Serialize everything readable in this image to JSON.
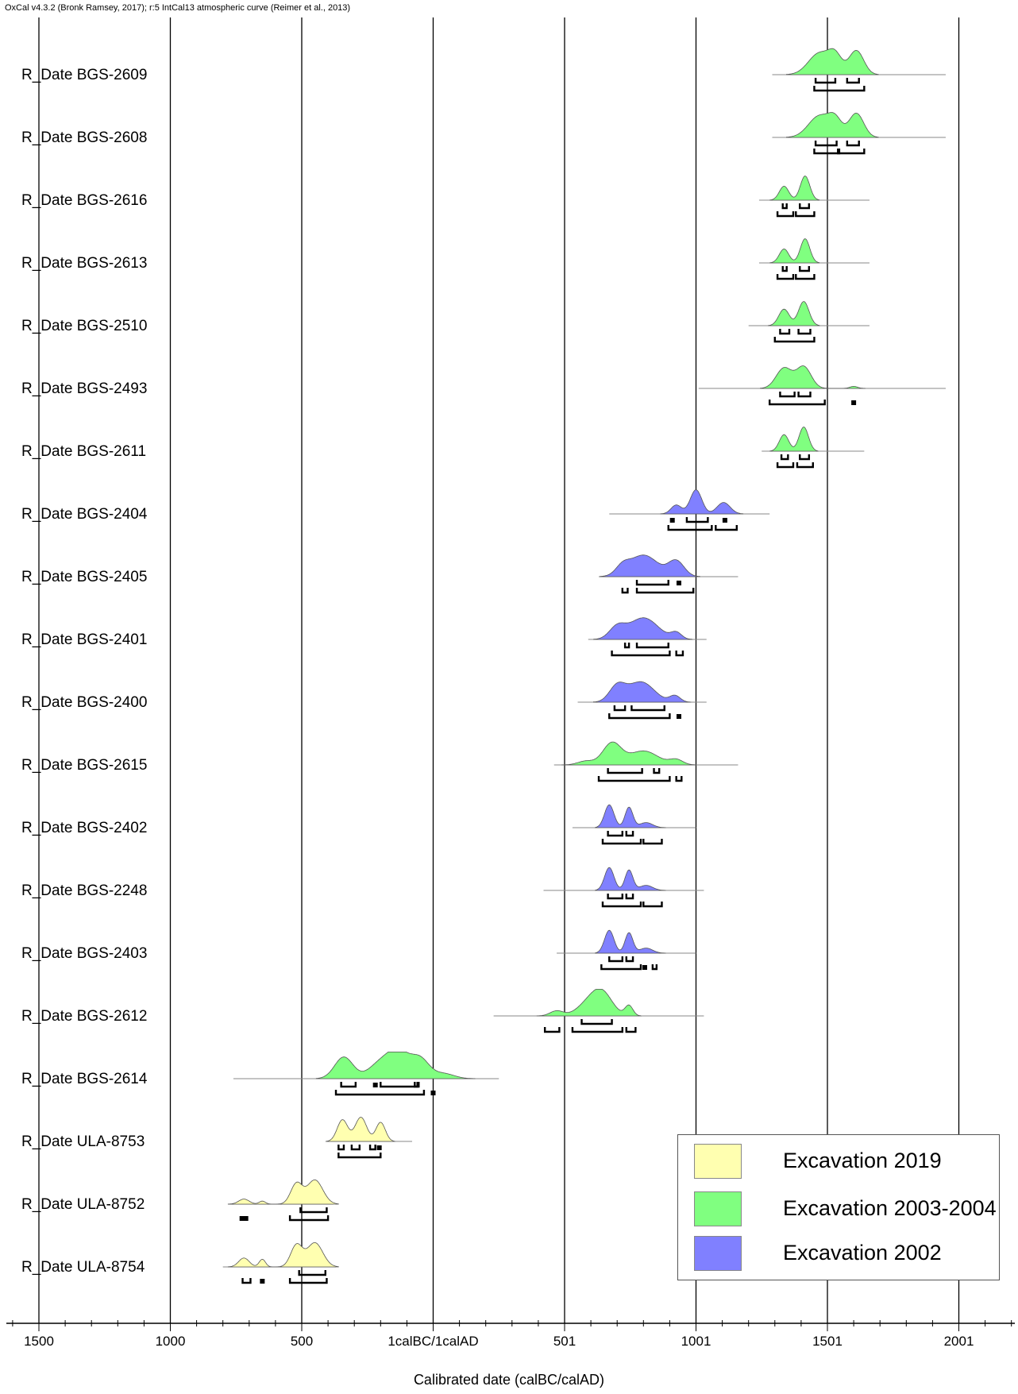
{
  "header": "OxCal v4.3.2 (Bronk Ramsey, 2017); r:5 IntCal13 atmospheric curve (Reimer et al., 2013)",
  "colors": {
    "Excavation 2019": "#ffffb0",
    "Excavation 2003-2004": "#80ff80",
    "Excavation 2002": "#8080ff"
  },
  "chart_data": {
    "type": "area",
    "title": "",
    "xlabel": "Calibrated date (calBC/calAD)",
    "xlim": [
      -1600,
      2260
    ],
    "x_ticks": [
      {
        "value": -1500,
        "label": "1500"
      },
      {
        "value": -1000,
        "label": "1000"
      },
      {
        "value": -500,
        "label": "500"
      },
      {
        "value": 0,
        "label": "1calBC/1calAD"
      },
      {
        "value": 500,
        "label": "501"
      },
      {
        "value": 1000,
        "label": "1001"
      },
      {
        "value": 1500,
        "label": "1501"
      },
      {
        "value": 2000,
        "label": "2001"
      }
    ],
    "grid": true,
    "legend": {
      "placement": "bottom-right",
      "entries": [
        "Excavation 2019",
        "Excavation 2003-2004",
        "Excavation 2002"
      ]
    },
    "series": [
      {
        "name": "R_Date BGS-2609",
        "group": "Excavation 2003-2004",
        "prior": [
          1290,
          1950
        ],
        "peaks": [
          [
            1470,
            42,
            0.85
          ],
          [
            1530,
            25,
            0.65
          ],
          [
            1610,
            28,
            0.95
          ]
        ],
        "sigma1": [
          [
            1455,
            1530
          ],
          [
            1575,
            1620
          ]
        ],
        "sigma2": [
          [
            1450,
            1640
          ]
        ]
      },
      {
        "name": "R_Date BGS-2608",
        "group": "Excavation 2003-2004",
        "prior": [
          1290,
          1950
        ],
        "peaks": [
          [
            1470,
            42,
            0.85
          ],
          [
            1530,
            25,
            0.6
          ],
          [
            1610,
            28,
            0.95
          ]
        ],
        "sigma1": [
          [
            1455,
            1535
          ],
          [
            1575,
            1620
          ]
        ],
        "sigma2": [
          [
            1450,
            1545
          ],
          [
            1540,
            1640
          ]
        ]
      },
      {
        "name": "R_Date BGS-2616",
        "group": "Excavation 2003-2004",
        "prior": [
          1240,
          1660
        ],
        "peaks": [
          [
            1335,
            18,
            0.55
          ],
          [
            1415,
            18,
            0.95
          ]
        ],
        "sigma1": [
          [
            1330,
            1345
          ],
          [
            1395,
            1430
          ]
        ],
        "sigma2": [
          [
            1310,
            1370
          ],
          [
            1380,
            1450
          ]
        ]
      },
      {
        "name": "R_Date BGS-2613",
        "group": "Excavation 2003-2004",
        "prior": [
          1240,
          1660
        ],
        "peaks": [
          [
            1335,
            18,
            0.55
          ],
          [
            1415,
            18,
            0.95
          ]
        ],
        "sigma1": [
          [
            1330,
            1345
          ],
          [
            1395,
            1430
          ]
        ],
        "sigma2": [
          [
            1310,
            1370
          ],
          [
            1380,
            1450
          ]
        ]
      },
      {
        "name": "R_Date BGS-2510",
        "group": "Excavation 2003-2004",
        "prior": [
          1200,
          1660
        ],
        "peaks": [
          [
            1335,
            20,
            0.65
          ],
          [
            1410,
            20,
            0.95
          ]
        ],
        "sigma1": [
          [
            1320,
            1355
          ],
          [
            1390,
            1435
          ]
        ],
        "sigma2": [
          [
            1300,
            1450
          ]
        ]
      },
      {
        "name": "R_Date BGS-2493",
        "group": "Excavation 2003-2004",
        "prior": [
          1010,
          1950
        ],
        "peaks": [
          [
            1335,
            30,
            0.8
          ],
          [
            1410,
            28,
            0.85
          ],
          [
            1600,
            15,
            0.08
          ]
        ],
        "sigma1": [
          [
            1320,
            1375
          ],
          [
            1390,
            1435
          ]
        ],
        "sigma2": [
          [
            1280,
            1490
          ],
          [
            1595,
            1605
          ]
        ]
      },
      {
        "name": "R_Date BGS-2611",
        "group": "Excavation 2003-2004",
        "prior": [
          1250,
          1640
        ],
        "peaks": [
          [
            1335,
            18,
            0.65
          ],
          [
            1410,
            18,
            0.95
          ]
        ],
        "sigma1": [
          [
            1325,
            1350
          ],
          [
            1395,
            1430
          ]
        ],
        "sigma2": [
          [
            1310,
            1370
          ],
          [
            1385,
            1445
          ]
        ]
      },
      {
        "name": "R_Date BGS-2404",
        "group": "Excavation 2002",
        "prior": [
          670,
          1280
        ],
        "peaks": [
          [
            925,
            20,
            0.35
          ],
          [
            1000,
            22,
            0.95
          ],
          [
            1105,
            25,
            0.45
          ]
        ],
        "sigma1": [
          [
            905,
            915
          ],
          [
            965,
            1045
          ],
          [
            1105,
            1115
          ]
        ],
        "sigma2": [
          [
            895,
            1060
          ],
          [
            1075,
            1155
          ]
        ]
      },
      {
        "name": "R_Date BGS-2405",
        "group": "Excavation 2002",
        "prior": [
          630,
          1160
        ],
        "peaks": [
          [
            720,
            25,
            0.3
          ],
          [
            800,
            55,
            0.85
          ],
          [
            925,
            30,
            0.6
          ]
        ],
        "sigma1": [
          [
            775,
            895
          ],
          [
            930,
            940
          ]
        ],
        "sigma2": [
          [
            720,
            740
          ],
          [
            775,
            990
          ]
        ]
      },
      {
        "name": "R_Date BGS-2401",
        "group": "Excavation 2002",
        "prior": [
          590,
          1040
        ],
        "peaks": [
          [
            700,
            30,
            0.45
          ],
          [
            800,
            55,
            0.85
          ],
          [
            925,
            20,
            0.25
          ]
        ],
        "sigma1": [
          [
            730,
            745
          ],
          [
            775,
            895
          ]
        ],
        "sigma2": [
          [
            680,
            900
          ],
          [
            925,
            950
          ]
        ]
      },
      {
        "name": "R_Date BGS-2400",
        "group": "Excavation 2002",
        "prior": [
          550,
          1040
        ],
        "peaks": [
          [
            700,
            30,
            0.6
          ],
          [
            790,
            50,
            0.8
          ],
          [
            920,
            20,
            0.25
          ]
        ],
        "sigma1": [
          [
            690,
            730
          ],
          [
            755,
            880
          ]
        ],
        "sigma2": [
          [
            670,
            900
          ],
          [
            930,
            940
          ]
        ]
      },
      {
        "name": "R_Date BGS-2615",
        "group": "Excavation 2003-2004",
        "prior": [
          460,
          1160
        ],
        "peaks": [
          [
            580,
            30,
            0.15
          ],
          [
            680,
            35,
            0.85
          ],
          [
            800,
            55,
            0.55
          ],
          [
            925,
            25,
            0.2
          ]
        ],
        "sigma1": [
          [
            665,
            795
          ],
          [
            840,
            860
          ]
        ],
        "sigma2": [
          [
            630,
            900
          ],
          [
            925,
            945
          ]
        ]
      },
      {
        "name": "R_Date BGS-2402",
        "group": "Excavation 2002",
        "prior": [
          530,
          1000
        ],
        "peaks": [
          [
            670,
            18,
            0.9
          ],
          [
            745,
            15,
            0.8
          ],
          [
            810,
            25,
            0.2
          ]
        ],
        "sigma1": [
          [
            665,
            720
          ],
          [
            735,
            760
          ]
        ],
        "sigma2": [
          [
            645,
            790
          ],
          [
            800,
            870
          ]
        ]
      },
      {
        "name": "R_Date BGS-2248",
        "group": "Excavation 2002",
        "prior": [
          420,
          1030
        ],
        "peaks": [
          [
            670,
            18,
            0.9
          ],
          [
            745,
            15,
            0.8
          ],
          [
            810,
            25,
            0.2
          ]
        ],
        "sigma1": [
          [
            665,
            720
          ],
          [
            735,
            760
          ]
        ],
        "sigma2": [
          [
            645,
            790
          ],
          [
            800,
            870
          ]
        ]
      },
      {
        "name": "R_Date BGS-2403",
        "group": "Excavation 2002",
        "prior": [
          470,
          1000
        ],
        "peaks": [
          [
            670,
            18,
            0.9
          ],
          [
            745,
            15,
            0.8
          ],
          [
            810,
            25,
            0.2
          ]
        ],
        "sigma1": [
          [
            670,
            720
          ],
          [
            735,
            760
          ]
        ],
        "sigma2": [
          [
            640,
            790
          ],
          [
            800,
            810
          ],
          [
            835,
            850
          ]
        ]
      },
      {
        "name": "R_Date BGS-2612",
        "group": "Excavation 2003-2004",
        "prior": [
          230,
          1030
        ],
        "peaks": [
          [
            470,
            25,
            0.2
          ],
          [
            580,
            40,
            0.35
          ],
          [
            640,
            40,
            0.95
          ],
          [
            745,
            15,
            0.4
          ]
        ],
        "sigma1": [
          [
            565,
            680
          ]
        ],
        "sigma2": [
          [
            425,
            480
          ],
          [
            530,
            720
          ],
          [
            735,
            770
          ]
        ]
      },
      {
        "name": "R_Date BGS-2614",
        "group": "Excavation 2003-2004",
        "prior": [
          -760,
          250
        ],
        "peaks": [
          [
            -340,
            35,
            0.85
          ],
          [
            -200,
            45,
            0.6
          ],
          [
            -130,
            40,
            0.95
          ],
          [
            -50,
            35,
            0.75
          ],
          [
            40,
            40,
            0.2
          ]
        ],
        "sigma1": [
          [
            -350,
            -295
          ],
          [
            -225,
            -215
          ],
          [
            -200,
            -60
          ],
          [
            -70,
            -55
          ]
        ],
        "sigma2": [
          [
            -370,
            -35
          ],
          [
            -5,
            5
          ]
        ]
      },
      {
        "name": "R_Date ULA-8753",
        "group": "Excavation 2019",
        "prior": [
          -410,
          -80
        ],
        "peaks": [
          [
            -345,
            20,
            0.85
          ],
          [
            -275,
            22,
            0.95
          ],
          [
            -200,
            18,
            0.75
          ]
        ],
        "sigma1": [
          [
            -360,
            -340
          ],
          [
            -310,
            -280
          ],
          [
            -240,
            -220
          ],
          [
            -210,
            -200
          ]
        ],
        "sigma2": [
          [
            -360,
            -200
          ]
        ]
      },
      {
        "name": "R_Date ULA-8752",
        "group": "Excavation 2019",
        "prior": [
          -780,
          -380
        ],
        "peaks": [
          [
            -720,
            20,
            0.2
          ],
          [
            -650,
            12,
            0.12
          ],
          [
            -520,
            22,
            0.8
          ],
          [
            -450,
            30,
            0.95
          ]
        ],
        "sigma1": [
          [
            -505,
            -405
          ]
        ],
        "sigma2": [
          [
            -730,
            -725
          ],
          [
            -715,
            -710
          ],
          [
            -545,
            -400
          ]
        ]
      },
      {
        "name": "R_Date ULA-8754",
        "group": "Excavation 2019",
        "prior": [
          -800,
          -370
        ],
        "peaks": [
          [
            -720,
            20,
            0.35
          ],
          [
            -650,
            12,
            0.3
          ],
          [
            -520,
            22,
            0.85
          ],
          [
            -450,
            30,
            0.95
          ]
        ],
        "sigma1": [
          [
            -510,
            -410
          ]
        ],
        "sigma2": [
          [
            -725,
            -695
          ],
          [
            -655,
            -645
          ],
          [
            -545,
            -405
          ]
        ]
      }
    ]
  }
}
